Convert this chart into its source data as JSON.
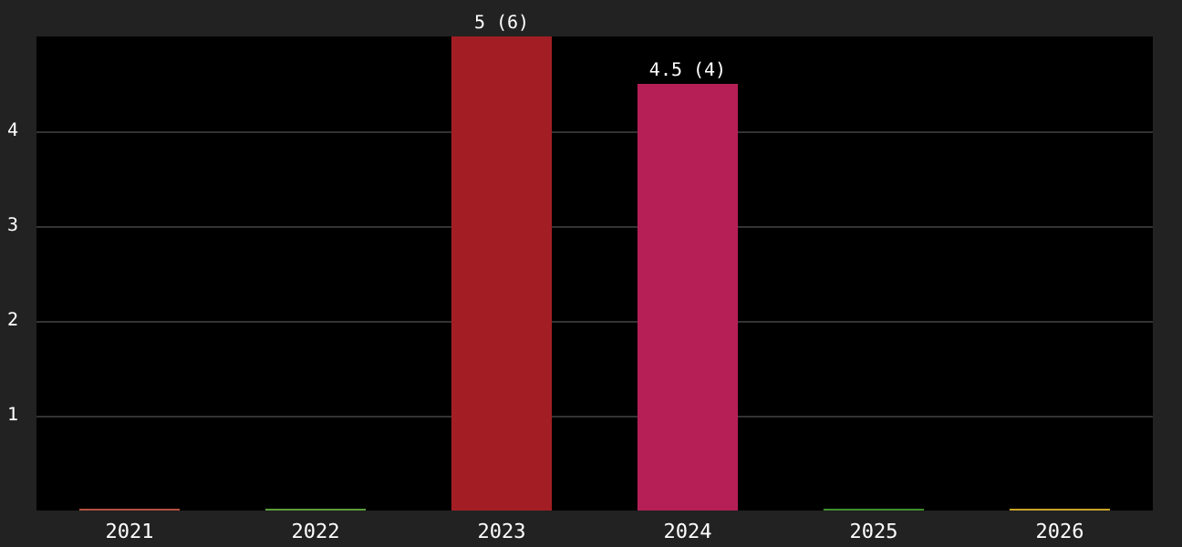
{
  "chart_data": {
    "type": "bar",
    "categories": [
      "2021",
      "2022",
      "2023",
      "2024",
      "2025",
      "2026"
    ],
    "values": [
      0,
      0,
      5,
      4.5,
      0,
      0
    ],
    "colors": [
      "#b5503f",
      "#5b9e3a",
      "#a31e24",
      "#b51f56",
      "#3f8f2c",
      "#c9a326"
    ],
    "value_labels": [
      null,
      null,
      "5 (6)",
      "4.5 (4)",
      null,
      null
    ],
    "ylim": [
      0,
      5
    ],
    "yticks": [
      1,
      2,
      3,
      4
    ],
    "grid": "y"
  }
}
